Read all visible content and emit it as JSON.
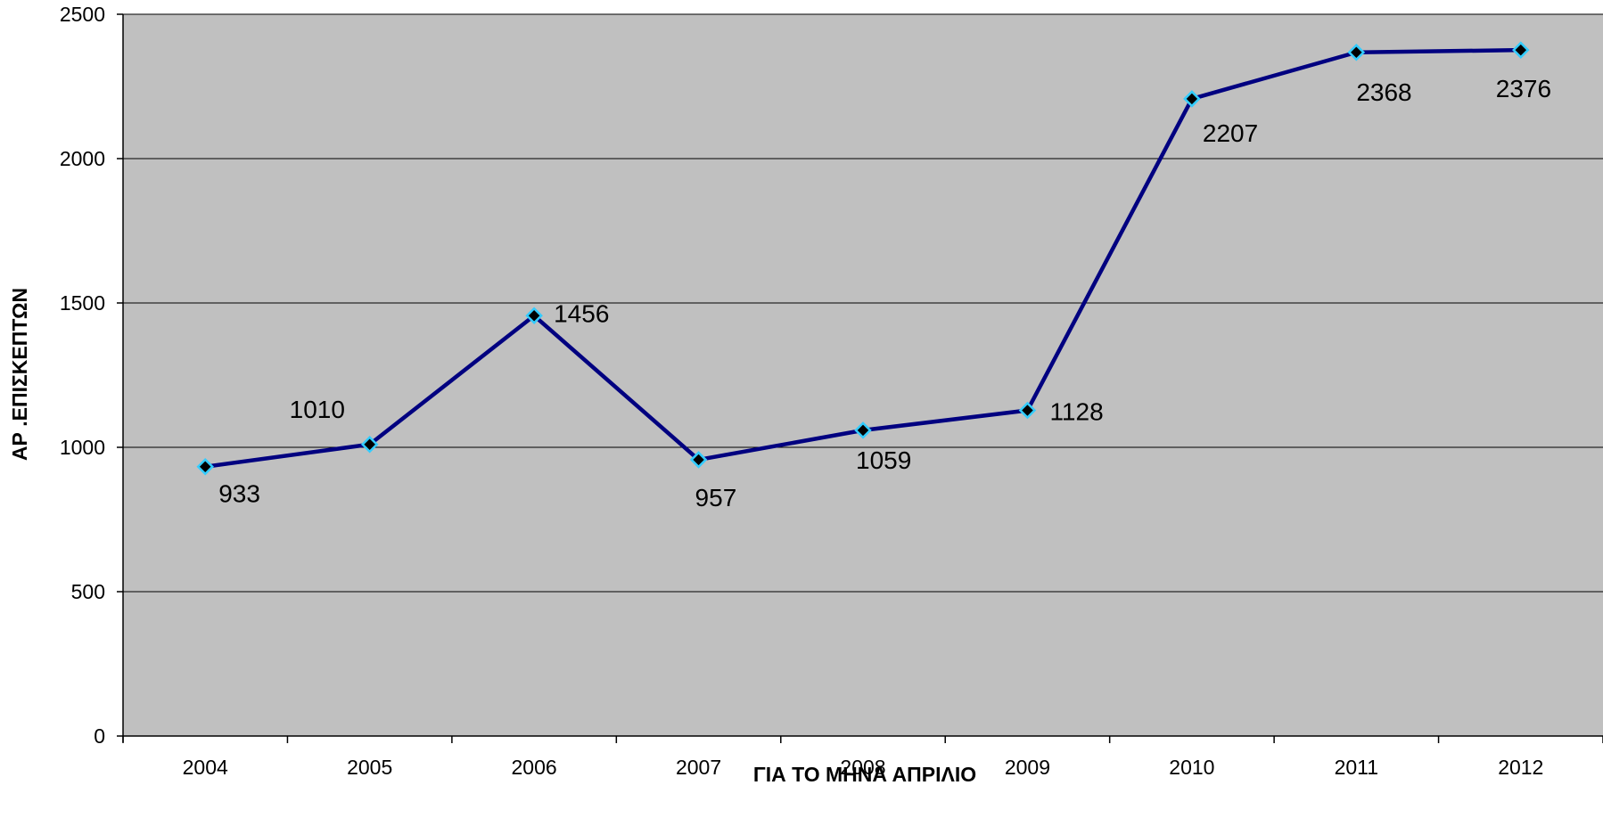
{
  "chart_data": {
    "type": "line",
    "xlabel": "ΓΙΑ ΤΟ ΜΗΝΑ ΑΠΡΙΛΙΟ",
    "ylabel": "ΑΡ .ΕΠΙΣΚΕΠΤΩΝ",
    "categories": [
      "2004",
      "2005",
      "2006",
      "2007",
      "2008",
      "2009",
      "2010",
      "2011",
      "2012"
    ],
    "series": [
      {
        "values": [
          933,
          1010,
          1456,
          957,
          1059,
          1128,
          2207,
          2368,
          2376
        ]
      }
    ],
    "data_labels": [
      "933",
      "1010",
      "1456",
      "957",
      "1059",
      "1128",
      "2207",
      "2368",
      "2376"
    ],
    "ylim": [
      0,
      2500
    ],
    "yticks": [
      "0",
      "500",
      "1000",
      "1500",
      "2000",
      "2500"
    ],
    "grid": true,
    "legend": "none",
    "colors": {
      "plot_background": "#c0c0c0",
      "line": "#000080",
      "marker_fill": "#000000",
      "marker_edge": "#33ccff",
      "gridline": "#000000"
    }
  }
}
